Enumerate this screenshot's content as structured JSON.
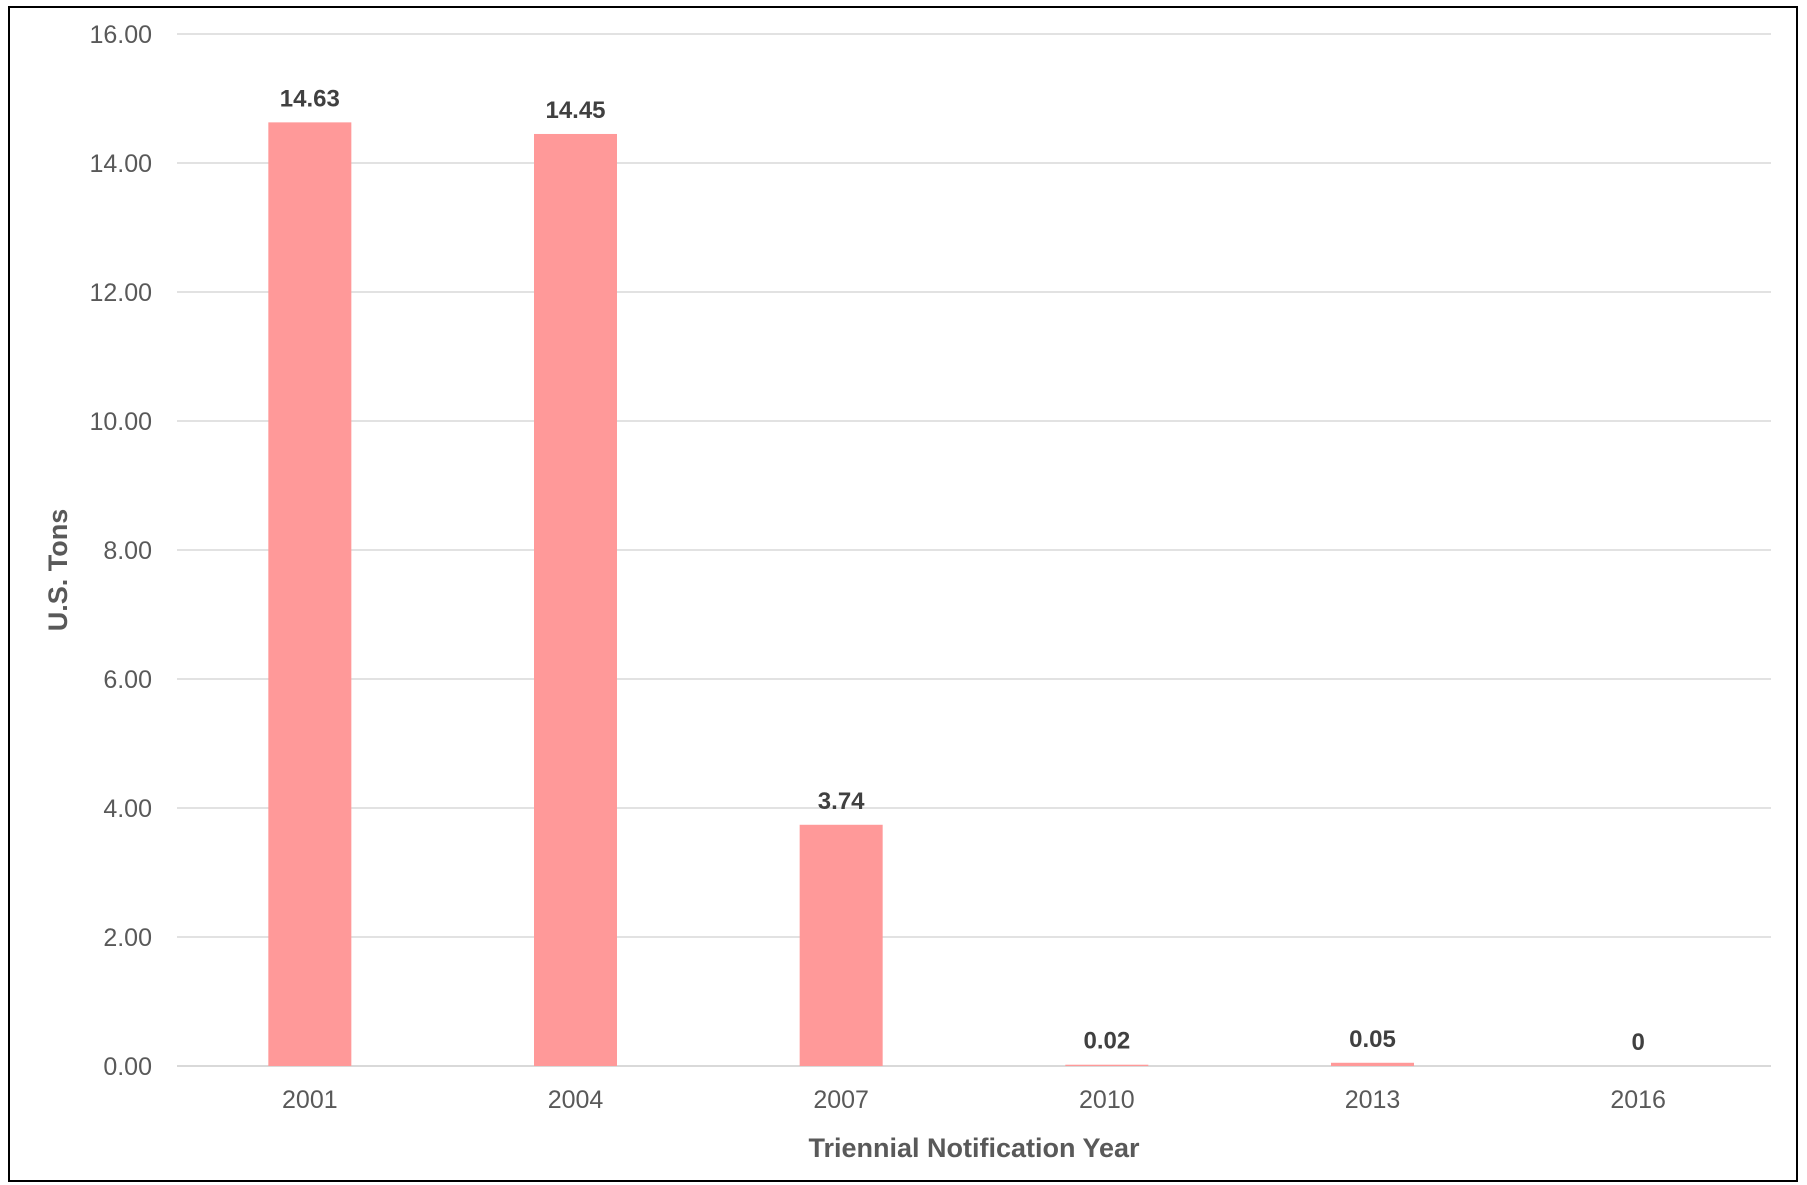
{
  "chart_data": {
    "type": "bar",
    "categories": [
      "2001",
      "2004",
      "2007",
      "2010",
      "2013",
      "2016"
    ],
    "values": [
      14.63,
      14.45,
      3.74,
      0.02,
      0.05,
      0
    ],
    "data_labels": [
      "14.63",
      "14.45",
      "3.74",
      "0.02",
      "0.05",
      "0"
    ],
    "xlabel": "Triennial Notification Year",
    "ylabel": "U.S. Tons",
    "ylim": [
      0,
      16
    ],
    "yticks": [
      "0.00",
      "2.00",
      "4.00",
      "6.00",
      "8.00",
      "10.00",
      "12.00",
      "14.00",
      "16.00"
    ],
    "grid": true,
    "legend": "none",
    "bar_color": "#ff9999",
    "gridline_color": "#d9d9d9"
  }
}
